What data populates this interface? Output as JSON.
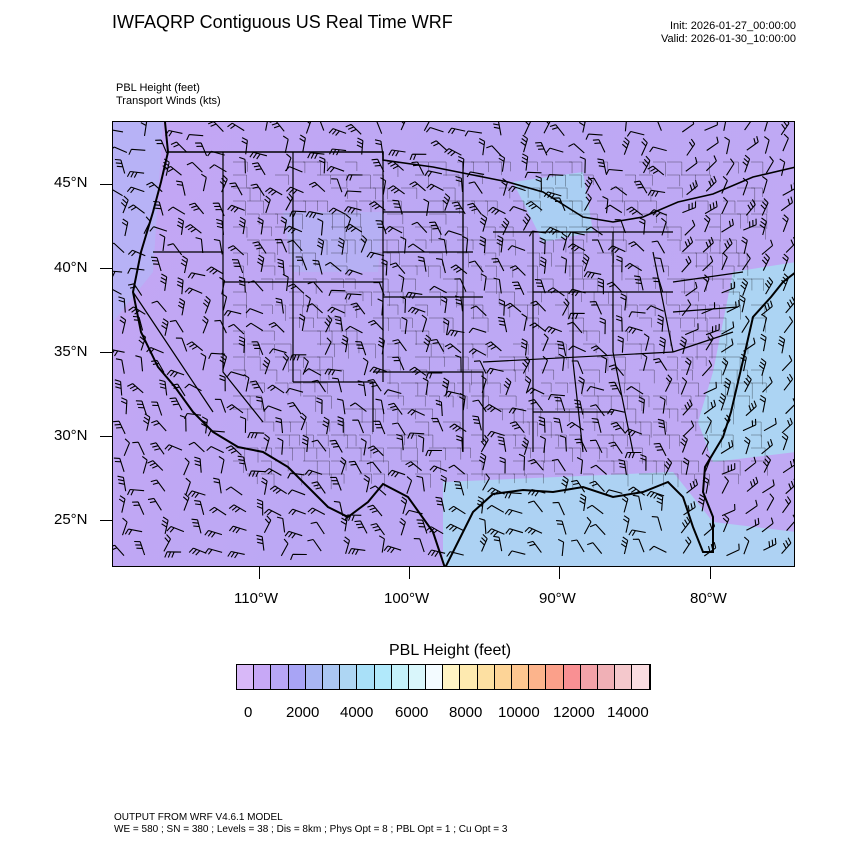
{
  "header": {
    "title": "IWFAQRP Contiguous US Real Time WRF",
    "init": "Init: 2026-01-27_00:00:00",
    "valid": "Valid: 2026-01-30_10:00:00"
  },
  "fields": {
    "line1": "PBL Height   (feet)",
    "line2": "Transport Winds   (kts)"
  },
  "map": {
    "lat_labels": [
      "45°N",
      "40°N",
      "35°N",
      "30°N",
      "25°N"
    ],
    "lon_labels": [
      "110°W",
      "100°W",
      "90°W",
      "80°W"
    ]
  },
  "colorbar": {
    "title": "PBL Height  (feet)",
    "labels": [
      "0",
      "2000",
      "4000",
      "6000",
      "8000",
      "10000",
      "12000",
      "14000"
    ],
    "colors": [
      "#d8b8f8",
      "#c7a8f6",
      "#b7a6f6",
      "#a8a4f5",
      "#a9b6f3",
      "#abc6f2",
      "#aed6f3",
      "#a9e0f8",
      "#b1e9fb",
      "#c4f1fa",
      "#d9f6fb",
      "#f3fbff",
      "#fff4c4",
      "#feeab0",
      "#fde0a2",
      "#fdd497",
      "#fdc690",
      "#fcb48c",
      "#fba08a",
      "#f99093",
      "#f3a2a8",
      "#f0b0b6",
      "#f4c8cc",
      "#fadde1"
    ]
  },
  "footer": {
    "line1": "OUTPUT FROM WRF V4.6.1 MODEL",
    "line2": "WE = 580 ; SN = 380 ; Levels = 38 ; Dis = 8km ; Phys Opt = 8 ; PBL Opt = 1 ; Cu Opt = 3"
  }
}
